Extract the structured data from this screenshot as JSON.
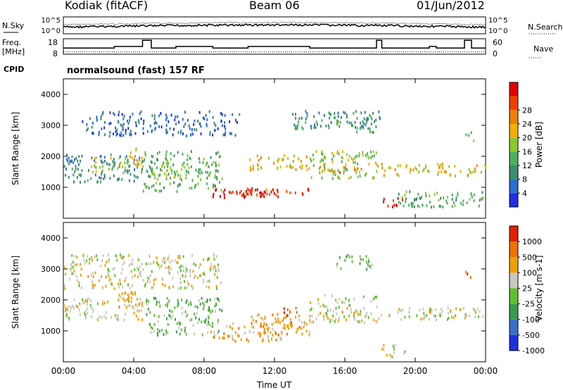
{
  "header": {
    "station": "Kodiak (fitACF)",
    "beam": "Beam 06",
    "date": "01/Jun/2012"
  },
  "left_labels": {
    "nsky": "N.Sky",
    "freq": "Freq.",
    "freq_unit": "[MHz]",
    "cpid": "CPID"
  },
  "right_labels": {
    "nsearch": "N.Search",
    "nave": "Nave"
  },
  "program": "normalsound (fast) 157 RF",
  "colors": {
    "power_scale": [
      "#1f2fe0",
      "#2a6fd0",
      "#3f8a70",
      "#4db060",
      "#8cc830",
      "#f0b000",
      "#f08000",
      "#f04000",
      "#e00000"
    ],
    "velocity_scale": [
      "#1f2fe0",
      "#3a70c8",
      "#3a9a50",
      "#60c030",
      "#c8c8c0",
      "#f0a000",
      "#f07000",
      "#e02000"
    ]
  },
  "chart_data": [
    {
      "type": "line",
      "panel": "noise",
      "ytick_labels_left": [
        "10^5",
        "10^0"
      ],
      "ytick_labels_right": [
        "10^5",
        "10^0"
      ]
    },
    {
      "type": "line",
      "panel": "frequency",
      "ytick_labels_left": [
        "18",
        "8"
      ],
      "ytick_labels_right": [
        "60",
        "0"
      ],
      "series": [
        {
          "name": "Freq.",
          "x": [
            0,
            2.9,
            2.9,
            4.5,
            4.5,
            5.0,
            5.0,
            6.4,
            6.4,
            8.5,
            8.5,
            10.5,
            10.5,
            14.0,
            14.0,
            17.8,
            17.8,
            18.1,
            18.1,
            20.8,
            20.8,
            21.2,
            21.2,
            22.8,
            22.8,
            23.2,
            23.2,
            24
          ],
          "y": [
            12,
            12,
            13,
            13,
            17,
            17,
            12,
            12,
            13,
            13,
            12,
            12,
            13,
            13,
            12,
            12,
            17,
            17,
            12,
            12,
            13,
            13,
            12,
            12,
            17,
            17,
            12,
            12
          ]
        }
      ]
    },
    {
      "type": "heatmap",
      "panel": "power",
      "ylabel": "Slant Range [km]",
      "colorbar_label": "Power [dB]",
      "colorbar_ticks": [
        "4",
        "8",
        "12",
        "16",
        "20",
        "24",
        "28"
      ],
      "ytick_labels": [
        "1000",
        "2000",
        "3000",
        "4000"
      ]
    },
    {
      "type": "heatmap",
      "panel": "velocity",
      "ylabel": "Slant Range [km]",
      "xlabel": "Time UT",
      "colorbar_label": "Velocity [m s-1]",
      "colorbar_ticks": [
        "1000",
        "500",
        "100",
        "25",
        "-25",
        "-100",
        "-500",
        "-1000"
      ],
      "ytick_labels": [
        "1000",
        "2000",
        "3000",
        "4000"
      ],
      "xtick_labels": [
        "00:00",
        "04:00",
        "08:00",
        "12:00",
        "16:00",
        "20:00",
        "00:00"
      ]
    }
  ]
}
